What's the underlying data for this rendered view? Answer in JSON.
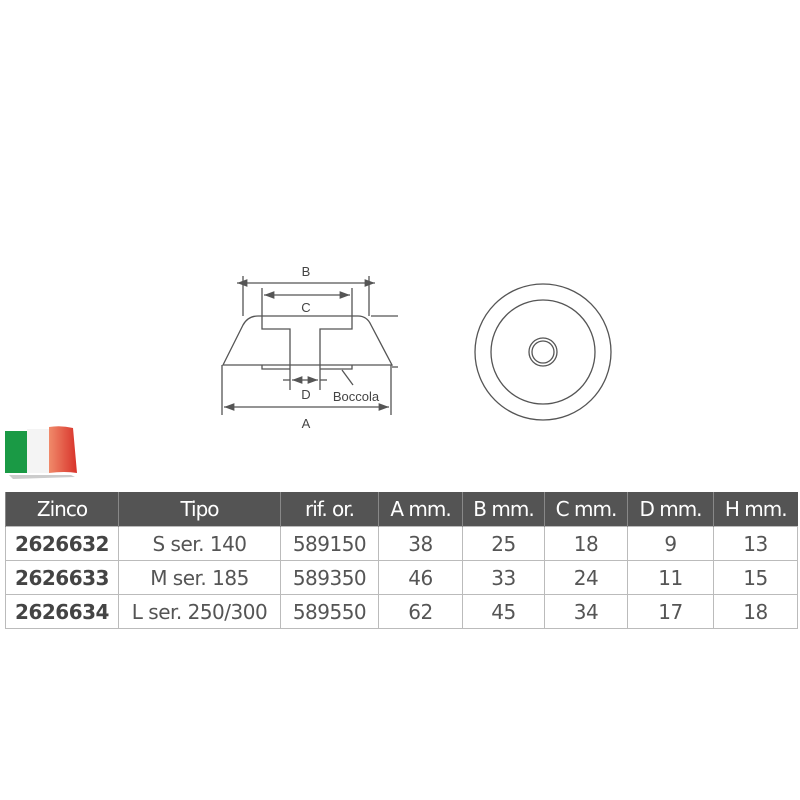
{
  "drawing": {
    "labels": {
      "a": "A",
      "b": "B",
      "c": "C",
      "d": "D",
      "bushing": "Boccola"
    },
    "line_color": "#555555"
  },
  "flag": {
    "icon": "italy-flag-icon",
    "colors": [
      "#1a9a45",
      "#ffffff",
      "#e8603f"
    ]
  },
  "table": {
    "headers": [
      "Zinco",
      "Tipo",
      "rif. or.",
      "A mm.",
      "B mm.",
      "C mm.",
      "D mm.",
      "H mm."
    ],
    "header_bg": "#545454",
    "rows": [
      [
        "2626632",
        "S ser. 140",
        "589150",
        "38",
        "25",
        "18",
        "9",
        "13"
      ],
      [
        "2626633",
        "M ser. 185",
        "589350",
        "46",
        "33",
        "24",
        "11",
        "15"
      ],
      [
        "2626634",
        "L ser. 250/300",
        "589550",
        "62",
        "45",
        "34",
        "17",
        "18"
      ]
    ]
  }
}
